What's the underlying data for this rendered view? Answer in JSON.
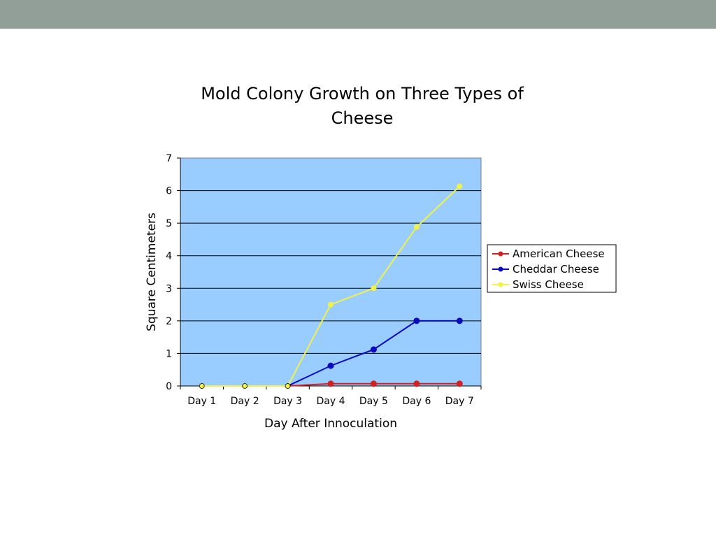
{
  "slide": {
    "bar_color": "#929e98"
  },
  "chart_data": {
    "type": "line",
    "title_lines": [
      "Mold Colony Growth on Three Types of",
      "Cheese"
    ],
    "xlabel": "Day After Innoculation",
    "ylabel": "Square Centimeters",
    "categories": [
      "Day 1",
      "Day 2",
      "Day 3",
      "Day 4",
      "Day 5",
      "Day 6",
      "Day 7"
    ],
    "ylim": [
      0,
      7
    ],
    "yticks": [
      "0",
      "1",
      "2",
      "3",
      "4",
      "5",
      "6",
      "7"
    ],
    "grid": true,
    "plot_background": "#99ccff",
    "legend_position": "right",
    "series": [
      {
        "name": "American Cheese",
        "color": "#d42020",
        "values": [
          0,
          0,
          0,
          0.07,
          0.07,
          0.07,
          0.07
        ]
      },
      {
        "name": "Cheddar Cheese",
        "color": "#0a0ac0",
        "values": [
          0,
          0,
          0,
          0.62,
          1.12,
          2.0,
          2.0
        ]
      },
      {
        "name": "Swiss Cheese",
        "color": "#f2f246",
        "values": [
          0,
          0,
          0,
          2.5,
          3.0,
          4.88,
          6.13
        ]
      }
    ]
  }
}
